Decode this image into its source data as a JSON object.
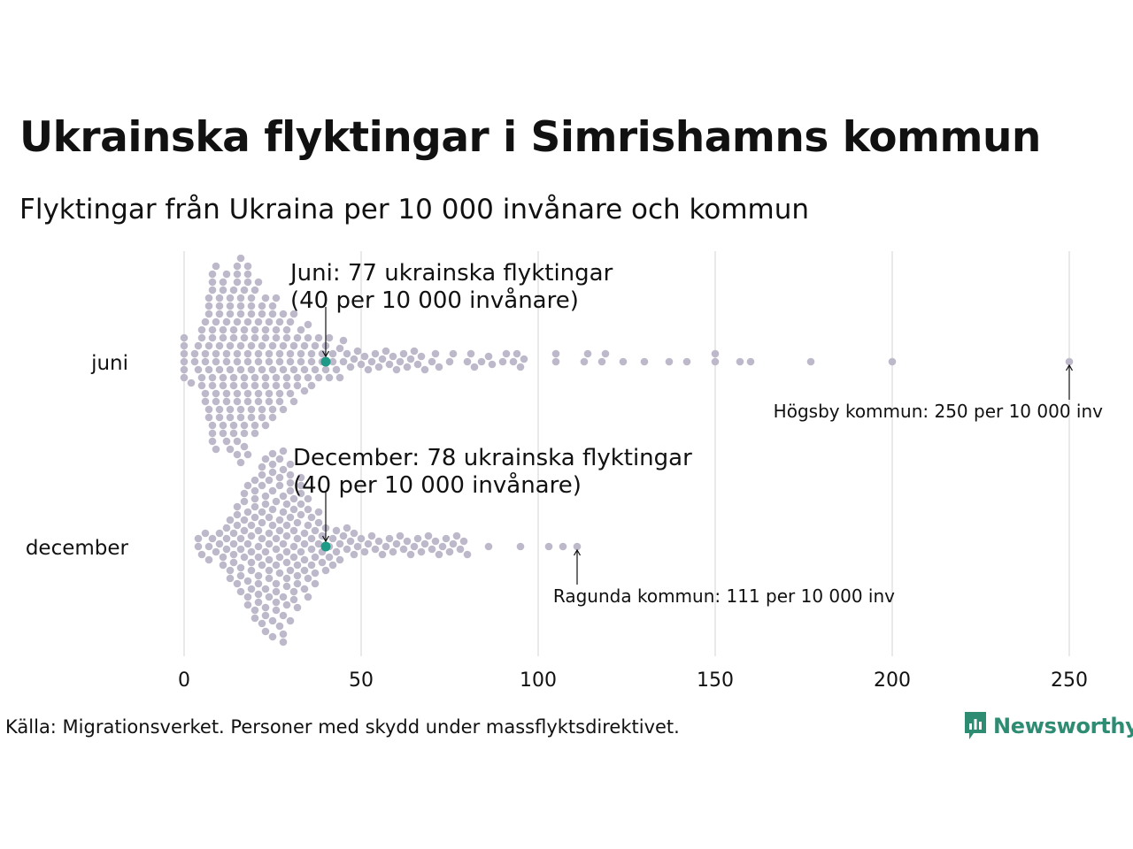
{
  "header": {
    "title": "Ukrainska flyktingar i Simrishamns kommun",
    "subtitle": "Flyktingar från Ukraina per 10 000 invånare och kommun"
  },
  "footer": {
    "source": "Källa: Migrationsverket. Personer med skydd under massflyktsdirektivet.",
    "brand": "Newsworthy"
  },
  "colors": {
    "dot": "#bdb9cb",
    "highlight": "#1f9a87",
    "grid": "#d3d3d3",
    "brand": "#2e8c73"
  },
  "chart_data": {
    "type": "scatter",
    "xlim": [
      0,
      260
    ],
    "xticks": [
      0,
      50,
      100,
      150,
      200,
      250
    ],
    "grid": "vertical",
    "categories": [
      "juni",
      "december"
    ],
    "series": [
      {
        "category": "juni",
        "highlight": 40,
        "values": [
          0,
          0,
          0,
          0,
          0,
          0,
          2,
          3,
          3,
          4,
          4,
          5,
          5,
          5,
          5,
          6,
          6,
          6,
          6,
          6,
          7,
          7,
          7,
          7,
          7,
          7,
          7,
          8,
          8,
          8,
          8,
          8,
          8,
          8,
          8,
          8,
          8,
          9,
          9,
          9,
          9,
          9,
          9,
          9,
          10,
          10,
          10,
          10,
          10,
          10,
          10,
          11,
          11,
          11,
          11,
          11,
          11,
          11,
          11,
          12,
          12,
          12,
          12,
          12,
          12,
          12,
          13,
          13,
          13,
          13,
          13,
          13,
          13,
          13,
          14,
          14,
          14,
          14,
          14,
          14,
          14,
          15,
          15,
          15,
          15,
          15,
          15,
          15,
          15,
          15,
          15,
          16,
          16,
          16,
          16,
          16,
          16,
          16,
          16,
          16,
          17,
          17,
          17,
          17,
          17,
          17,
          17,
          17,
          18,
          18,
          18,
          18,
          18,
          18,
          18,
          18,
          18,
          19,
          19,
          19,
          19,
          19,
          19,
          19,
          20,
          20,
          20,
          20,
          20,
          20,
          20,
          21,
          21,
          21,
          21,
          21,
          21,
          22,
          22,
          22,
          22,
          22,
          22,
          23,
          23,
          23,
          23,
          23,
          23,
          24,
          24,
          24,
          24,
          24,
          25,
          25,
          25,
          25,
          25,
          25,
          26,
          26,
          26,
          26,
          26,
          27,
          27,
          27,
          27,
          27,
          28,
          28,
          28,
          28,
          29,
          29,
          29,
          29,
          30,
          30,
          30,
          30,
          31,
          31,
          31,
          31,
          32,
          32,
          32,
          33,
          33,
          33,
          34,
          34,
          34,
          35,
          35,
          35,
          36,
          36,
          36,
          37,
          37,
          38,
          38,
          39,
          39,
          40,
          40,
          41,
          41,
          42,
          42,
          43,
          44,
          44,
          45,
          45,
          46,
          47,
          48,
          49,
          50,
          51,
          52,
          53,
          54,
          55,
          56,
          57,
          58,
          59,
          60,
          61,
          62,
          63,
          64,
          65,
          66,
          67,
          68,
          70,
          71,
          72,
          75,
          76,
          80,
          81,
          82,
          84,
          86,
          87,
          90,
          91,
          93,
          94,
          95,
          96,
          105,
          105,
          113,
          114,
          118,
          119,
          124,
          130,
          137,
          142,
          150,
          150,
          157,
          160,
          177,
          200,
          250
        ]
      },
      {
        "category": "december",
        "highlight": 40,
        "values": [
          4,
          4,
          5,
          6,
          7,
          7,
          8,
          9,
          10,
          10,
          11,
          11,
          12,
          12,
          12,
          13,
          13,
          13,
          14,
          14,
          14,
          14,
          15,
          15,
          15,
          15,
          16,
          16,
          16,
          16,
          16,
          17,
          17,
          17,
          17,
          17,
          18,
          18,
          18,
          18,
          18,
          18,
          19,
          19,
          19,
          19,
          19,
          19,
          20,
          20,
          20,
          20,
          20,
          20,
          20,
          21,
          21,
          21,
          21,
          21,
          21,
          21,
          22,
          22,
          22,
          22,
          22,
          22,
          22,
          22,
          23,
          23,
          23,
          23,
          23,
          23,
          23,
          23,
          24,
          24,
          24,
          24,
          24,
          24,
          24,
          24,
          25,
          25,
          25,
          25,
          25,
          25,
          25,
          25,
          26,
          26,
          26,
          26,
          26,
          26,
          26,
          26,
          27,
          27,
          27,
          27,
          27,
          27,
          27,
          27,
          28,
          28,
          28,
          28,
          28,
          28,
          28,
          28,
          28,
          29,
          29,
          29,
          29,
          29,
          29,
          29,
          29,
          30,
          30,
          30,
          30,
          30,
          30,
          30,
          31,
          31,
          31,
          31,
          31,
          31,
          31,
          32,
          32,
          32,
          32,
          32,
          32,
          33,
          33,
          33,
          33,
          33,
          33,
          34,
          34,
          34,
          34,
          34,
          35,
          35,
          35,
          35,
          35,
          36,
          36,
          36,
          36,
          37,
          37,
          37,
          37,
          38,
          38,
          38,
          39,
          39,
          39,
          40,
          40,
          41,
          41,
          42,
          42,
          43,
          43,
          44,
          44,
          45,
          46,
          46,
          47,
          48,
          48,
          49,
          50,
          51,
          52,
          53,
          54,
          55,
          56,
          57,
          58,
          59,
          60,
          61,
          62,
          63,
          64,
          65,
          66,
          67,
          68,
          69,
          70,
          71,
          72,
          73,
          74,
          75,
          76,
          77,
          78,
          79,
          80,
          86,
          95,
          103,
          107,
          111
        ]
      }
    ],
    "annotations": [
      {
        "category": "juni",
        "x": 40,
        "line1": "Juni: 77 ukrainska flyktingar",
        "line2": "(40 per 10 000 invånare)"
      },
      {
        "category": "december",
        "x": 40,
        "line1": "December: 78 ukrainska flyktingar",
        "line2": "(40 per 10 000 invånare)"
      },
      {
        "category": "juni",
        "x": 250,
        "text": "Högsby kommun: 250 per 10 000 inv"
      },
      {
        "category": "december",
        "x": 111,
        "text": "Ragunda kommun: 111 per 10 000 inv"
      }
    ]
  }
}
